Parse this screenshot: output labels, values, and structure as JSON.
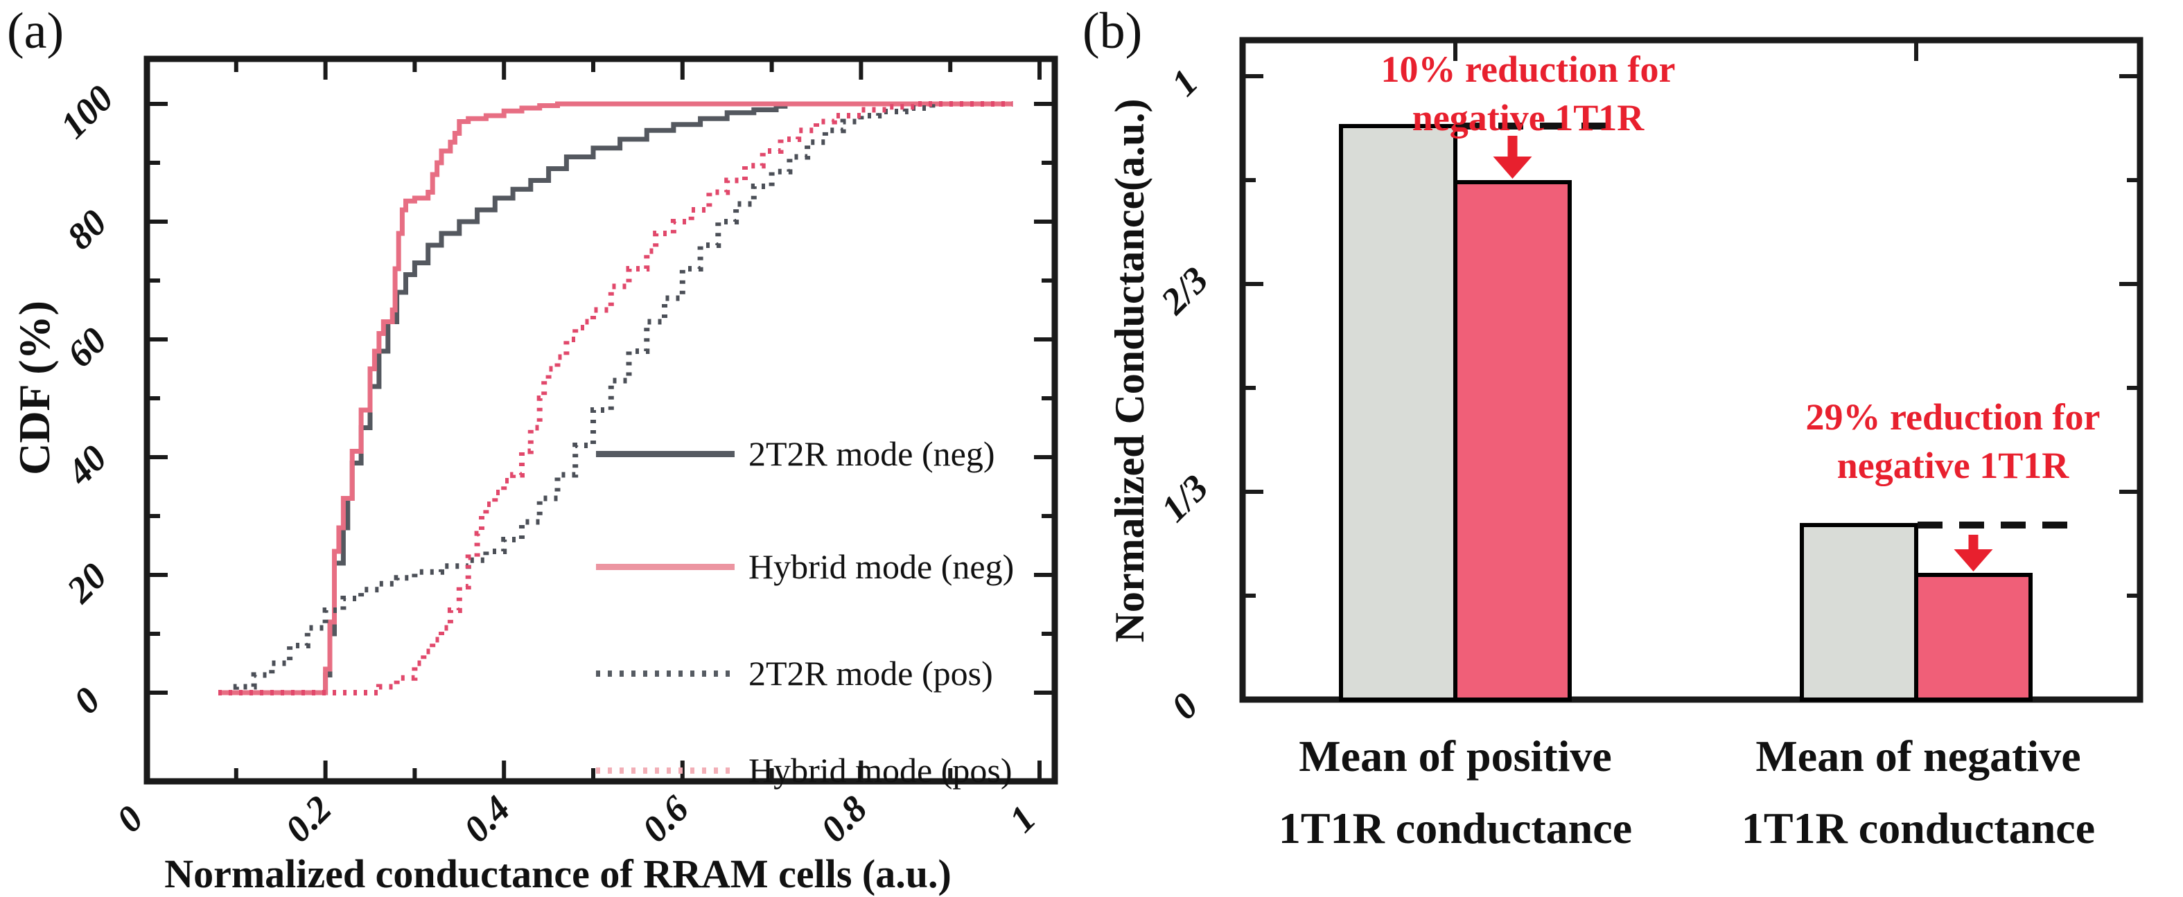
{
  "figure": {
    "background": "#ffffff",
    "axis_color": "#1a1a1a",
    "text_color": "#111111",
    "guide_dash_color": "#111111"
  },
  "chart_data": [
    {
      "id": "panel-a",
      "panel_label": "(a)",
      "type": "line",
      "title": "",
      "xlabel": "Normalized conductance of RRAM cells (a.u.)",
      "ylabel": "CDF (%)",
      "xlim": [
        0,
        1.02
      ],
      "ylim": [
        0,
        100
      ],
      "grid": false,
      "x_major_ticks": [
        {
          "v": 0,
          "label": "0"
        },
        {
          "v": 0.2,
          "label": "0.2"
        },
        {
          "v": 0.4,
          "label": "0.4"
        },
        {
          "v": 0.6,
          "label": "0.6"
        },
        {
          "v": 0.8,
          "label": "0.8"
        },
        {
          "v": 1,
          "label": "1"
        }
      ],
      "x_minor_ticks": [
        0.1,
        0.3,
        0.5,
        0.7,
        0.9
      ],
      "y_major_ticks": [
        {
          "v": 0,
          "label": "0"
        },
        {
          "v": 20,
          "label": "20"
        },
        {
          "v": 40,
          "label": "40"
        },
        {
          "v": 60,
          "label": "60"
        },
        {
          "v": 80,
          "label": "80"
        },
        {
          "v": 100,
          "label": "100"
        }
      ],
      "y_minor_ticks": [
        10,
        30,
        50,
        70,
        90
      ],
      "legend": {
        "position": "inside-bottom-right",
        "entries": [
          {
            "slug": "2t2r-neg",
            "label": "2T2R mode (neg)",
            "style": "solid",
            "color": "#565b62"
          },
          {
            "slug": "hybrid-neg",
            "label": "Hybrid mode (neg)",
            "style": "solid",
            "color": "#ec95a1"
          },
          {
            "slug": "2t2r-pos",
            "label": "2T2R mode (pos)",
            "style": "dotted",
            "color": "#565b62"
          },
          {
            "slug": "hybrid-pos",
            "label": "Hybrid mode (pos)",
            "style": "dotted",
            "color": "#f2aeb6"
          }
        ]
      },
      "series": [
        {
          "slug": "2t2r-neg",
          "name": "2T2R mode (neg)",
          "style": "solid",
          "color": "#54585f",
          "points": [
            [
              0.08,
              0
            ],
            [
              0.195,
              0
            ],
            [
              0.2,
              3
            ],
            [
              0.205,
              10
            ],
            [
              0.21,
              22
            ],
            [
              0.22,
              28
            ],
            [
              0.225,
              33
            ],
            [
              0.23,
              39
            ],
            [
              0.24,
              45
            ],
            [
              0.25,
              52
            ],
            [
              0.26,
              58
            ],
            [
              0.27,
              63
            ],
            [
              0.28,
              68
            ],
            [
              0.29,
              71
            ],
            [
              0.3,
              73
            ],
            [
              0.315,
              76
            ],
            [
              0.33,
              78
            ],
            [
              0.35,
              80
            ],
            [
              0.37,
              82
            ],
            [
              0.39,
              84
            ],
            [
              0.41,
              85.5
            ],
            [
              0.43,
              87
            ],
            [
              0.45,
              89
            ],
            [
              0.47,
              91
            ],
            [
              0.5,
              92.5
            ],
            [
              0.53,
              94
            ],
            [
              0.56,
              95.5
            ],
            [
              0.59,
              96.5
            ],
            [
              0.62,
              97.5
            ],
            [
              0.65,
              98.5
            ],
            [
              0.68,
              99
            ],
            [
              0.705,
              99.6
            ],
            [
              0.715,
              100
            ],
            [
              0.97,
              100
            ]
          ]
        },
        {
          "slug": "hybrid-neg",
          "name": "Hybrid mode (neg)",
          "style": "solid",
          "color": "#e76e83",
          "points": [
            [
              0.08,
              0
            ],
            [
              0.195,
              0
            ],
            [
              0.2,
              4
            ],
            [
              0.205,
              12
            ],
            [
              0.21,
              24
            ],
            [
              0.215,
              28
            ],
            [
              0.22,
              33
            ],
            [
              0.23,
              41
            ],
            [
              0.24,
              48
            ],
            [
              0.25,
              55
            ],
            [
              0.255,
              58
            ],
            [
              0.26,
              61
            ],
            [
              0.265,
              63
            ],
            [
              0.275,
              65
            ],
            [
              0.278,
              72
            ],
            [
              0.282,
              78
            ],
            [
              0.286,
              82
            ],
            [
              0.29,
              83.5
            ],
            [
              0.3,
              84
            ],
            [
              0.315,
              85
            ],
            [
              0.32,
              88
            ],
            [
              0.325,
              90
            ],
            [
              0.33,
              92
            ],
            [
              0.34,
              93.5
            ],
            [
              0.345,
              95
            ],
            [
              0.35,
              97
            ],
            [
              0.36,
              97.5
            ],
            [
              0.38,
              98
            ],
            [
              0.4,
              98.8
            ],
            [
              0.42,
              99.3
            ],
            [
              0.44,
              99.7
            ],
            [
              0.46,
              100
            ],
            [
              0.97,
              100
            ]
          ]
        },
        {
          "slug": "2t2r-pos",
          "name": "2T2R mode (pos)",
          "style": "dotted",
          "color": "#4b4f57",
          "points": [
            [
              0.08,
              0
            ],
            [
              0.1,
              1
            ],
            [
              0.12,
              3
            ],
            [
              0.14,
              5
            ],
            [
              0.16,
              8
            ],
            [
              0.18,
              11
            ],
            [
              0.2,
              14
            ],
            [
              0.22,
              16
            ],
            [
              0.24,
              17.5
            ],
            [
              0.26,
              18.5
            ],
            [
              0.28,
              19.5
            ],
            [
              0.3,
              20.5
            ],
            [
              0.33,
              21.5
            ],
            [
              0.36,
              22.5
            ],
            [
              0.38,
              24
            ],
            [
              0.4,
              26
            ],
            [
              0.42,
              29
            ],
            [
              0.44,
              33
            ],
            [
              0.46,
              37
            ],
            [
              0.48,
              42
            ],
            [
              0.5,
              48
            ],
            [
              0.52,
              53
            ],
            [
              0.54,
              58
            ],
            [
              0.56,
              63
            ],
            [
              0.58,
              67
            ],
            [
              0.6,
              72
            ],
            [
              0.62,
              76
            ],
            [
              0.64,
              80
            ],
            [
              0.66,
              83
            ],
            [
              0.68,
              86
            ],
            [
              0.7,
              88.5
            ],
            [
              0.72,
              91
            ],
            [
              0.74,
              93.5
            ],
            [
              0.76,
              95.5
            ],
            [
              0.78,
              97
            ],
            [
              0.8,
              98
            ],
            [
              0.82,
              98.7
            ],
            [
              0.85,
              99.3
            ],
            [
              0.88,
              100
            ],
            [
              0.97,
              100
            ]
          ]
        },
        {
          "slug": "hybrid-pos",
          "name": "Hybrid mode (pos)",
          "style": "dotted",
          "color": "#e1486b",
          "points": [
            [
              0.08,
              0
            ],
            [
              0.24,
              0
            ],
            [
              0.26,
              1
            ],
            [
              0.28,
              2.5
            ],
            [
              0.3,
              5
            ],
            [
              0.31,
              7
            ],
            [
              0.32,
              9
            ],
            [
              0.33,
              11
            ],
            [
              0.34,
              14
            ],
            [
              0.35,
              18
            ],
            [
              0.36,
              23
            ],
            [
              0.37,
              27
            ],
            [
              0.375,
              30
            ],
            [
              0.38,
              32
            ],
            [
              0.39,
              34
            ],
            [
              0.4,
              36
            ],
            [
              0.41,
              37
            ],
            [
              0.42,
              41
            ],
            [
              0.43,
              45
            ],
            [
              0.44,
              50
            ],
            [
              0.445,
              53
            ],
            [
              0.45,
              55
            ],
            [
              0.46,
              57
            ],
            [
              0.47,
              60
            ],
            [
              0.48,
              62
            ],
            [
              0.49,
              63
            ],
            [
              0.5,
              65
            ],
            [
              0.52,
              69
            ],
            [
              0.54,
              72
            ],
            [
              0.56,
              75
            ],
            [
              0.57,
              78
            ],
            [
              0.59,
              80
            ],
            [
              0.61,
              82
            ],
            [
              0.63,
              85
            ],
            [
              0.65,
              87
            ],
            [
              0.67,
              89.5
            ],
            [
              0.69,
              92
            ],
            [
              0.71,
              94
            ],
            [
              0.73,
              95.5
            ],
            [
              0.75,
              97
            ],
            [
              0.77,
              98
            ],
            [
              0.8,
              99
            ],
            [
              0.83,
              99.5
            ],
            [
              0.86,
              100
            ],
            [
              0.97,
              100
            ]
          ]
        }
      ]
    },
    {
      "id": "panel-b",
      "panel_label": "(b)",
      "type": "bar",
      "title": "",
      "xlabel": "",
      "ylabel": "Normalized Conductance(a.u.)",
      "ylim": [
        0,
        1
      ],
      "grid": false,
      "y_major_ticks": [
        {
          "v": 0,
          "label": "0"
        },
        {
          "v": 0.3333,
          "label": "1/3"
        },
        {
          "v": 0.6667,
          "label": "2/3"
        },
        {
          "v": 1,
          "label": "1"
        }
      ],
      "y_minor_ticks": [
        0.1667,
        0.5,
        0.8333
      ],
      "bar_colors": {
        "gray": "#d9dcd7",
        "pink": "#f05f78"
      },
      "bar_outline": "#000000",
      "annotation_color": "#e8202e",
      "groups": [
        {
          "slug": "positive",
          "label_line1": "Mean of positive",
          "label_line2": "1T1R conductance",
          "bars": [
            {
              "kind": "gray",
              "value": 0.92
            },
            {
              "kind": "pink",
              "value": 0.83
            }
          ],
          "reduction_note_line1": "10% reduction for",
          "reduction_note_line2": "negative 1T1R"
        },
        {
          "slug": "negative",
          "label_line1": "Mean of negative",
          "label_line2": "1T1R conductance",
          "bars": [
            {
              "kind": "gray",
              "value": 0.28
            },
            {
              "kind": "pink",
              "value": 0.2
            }
          ],
          "reduction_note_line1": "29% reduction for",
          "reduction_note_line2": "negative 1T1R"
        }
      ]
    }
  ]
}
